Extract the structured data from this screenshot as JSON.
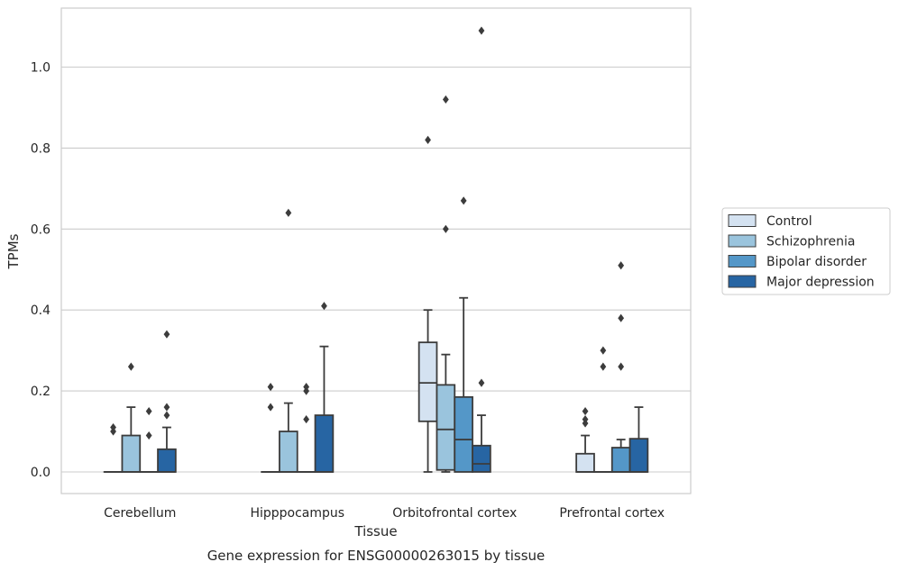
{
  "chart_data": {
    "type": "box",
    "title": "",
    "caption": "Gene expression for ENSG00000263015 by tissue",
    "xlabel": "Tissue",
    "ylabel": "TPMs",
    "ylim": [
      -0.05,
      1.15
    ],
    "yticks": [
      0.0,
      0.2,
      0.4,
      0.6,
      0.8,
      1.0
    ],
    "ytick_labels": [
      "0.0",
      "0.2",
      "0.4",
      "0.6",
      "0.8",
      "1.0"
    ],
    "grid": "horizontal",
    "legend_position": "right",
    "categories": [
      "Cerebellum",
      "Hipppocampus",
      "Orbitofrontal cortex",
      "Prefrontal cortex"
    ],
    "series": [
      {
        "name": "Control",
        "color": "#d4e2f1",
        "boxes": [
          {
            "q1": 0.0,
            "median": 0.0,
            "q3": 0.0,
            "whislo": 0.0,
            "whishi": 0.0,
            "fliers": [
              0.1,
              0.11
            ]
          },
          {
            "q1": 0.0,
            "median": 0.0,
            "q3": 0.0,
            "whislo": 0.0,
            "whishi": 0.0,
            "fliers": [
              0.16,
              0.21
            ]
          },
          {
            "q1": 0.125,
            "median": 0.22,
            "q3": 0.32,
            "whislo": 0.0,
            "whishi": 0.4,
            "fliers": [
              0.82
            ]
          },
          {
            "q1": 0.0,
            "median": 0.0,
            "q3": 0.045,
            "whislo": 0.0,
            "whishi": 0.09,
            "fliers": [
              0.12,
              0.13,
              0.15
            ]
          }
        ]
      },
      {
        "name": "Schizophrenia",
        "color": "#9ac4dd",
        "boxes": [
          {
            "q1": 0.0,
            "median": 0.0,
            "q3": 0.09,
            "whislo": 0.0,
            "whishi": 0.16,
            "fliers": [
              0.26
            ]
          },
          {
            "q1": 0.0,
            "median": 0.0,
            "q3": 0.1,
            "whislo": 0.0,
            "whishi": 0.17,
            "fliers": [
              0.64
            ]
          },
          {
            "q1": 0.005,
            "median": 0.105,
            "q3": 0.215,
            "whislo": 0.0,
            "whishi": 0.29,
            "fliers": [
              0.6,
              0.92
            ]
          },
          {
            "q1": 0.0,
            "median": 0.0,
            "q3": 0.0,
            "whislo": 0.0,
            "whishi": 0.0,
            "fliers": [
              0.26,
              0.3
            ]
          }
        ]
      },
      {
        "name": "Bipolar disorder",
        "color": "#5497c8",
        "boxes": [
          {
            "q1": 0.0,
            "median": 0.0,
            "q3": 0.0,
            "whislo": 0.0,
            "whishi": 0.0,
            "fliers": [
              0.09,
              0.15
            ]
          },
          {
            "q1": 0.0,
            "median": 0.0,
            "q3": 0.0,
            "whislo": 0.0,
            "whishi": 0.0,
            "fliers": [
              0.13,
              0.2,
              0.21
            ]
          },
          {
            "q1": 0.0,
            "median": 0.08,
            "q3": 0.185,
            "whislo": 0.0,
            "whishi": 0.43,
            "fliers": [
              0.67
            ]
          },
          {
            "q1": 0.0,
            "median": 0.0,
            "q3": 0.06,
            "whislo": 0.0,
            "whishi": 0.08,
            "fliers": [
              0.26,
              0.38,
              0.51
            ]
          }
        ]
      },
      {
        "name": "Major depression",
        "color": "#2765a3",
        "boxes": [
          {
            "q1": 0.0,
            "median": 0.0,
            "q3": 0.056,
            "whislo": 0.0,
            "whishi": 0.11,
            "fliers": [
              0.14,
              0.16,
              0.34
            ]
          },
          {
            "q1": 0.0,
            "median": 0.0,
            "q3": 0.14,
            "whislo": 0.0,
            "whishi": 0.31,
            "fliers": [
              0.41
            ]
          },
          {
            "q1": 0.0,
            "median": 0.02,
            "q3": 0.065,
            "whislo": 0.0,
            "whishi": 0.14,
            "fliers": [
              0.22,
              1.09
            ]
          },
          {
            "q1": 0.0,
            "median": 0.0,
            "q3": 0.082,
            "whislo": 0.0,
            "whishi": 0.16,
            "fliers": []
          }
        ]
      }
    ]
  }
}
